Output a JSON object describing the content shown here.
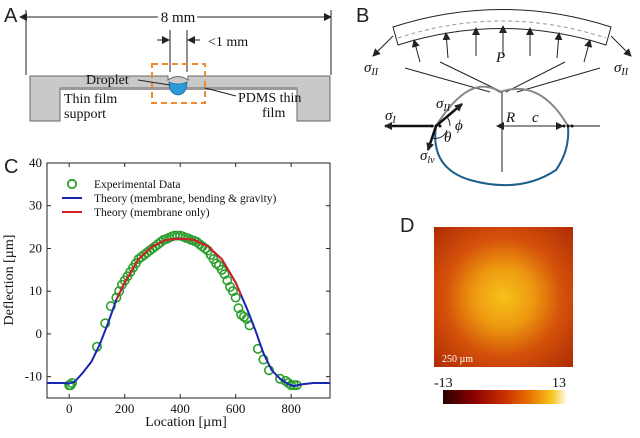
{
  "panels": {
    "a": {
      "label": "A",
      "width_label": "8 mm",
      "gap_label": "<1 mm",
      "droplet_label": "Droplet",
      "support_label_1": "Thin film",
      "support_label_2": "support",
      "film_label_1": "PDMS thin",
      "film_label_2": "film"
    },
    "b": {
      "label": "B",
      "pressure": "P",
      "sigma": "σ",
      "sub_II": "II",
      "sub_I": "I",
      "sub_lv": "lv",
      "phi": "ϕ",
      "theta": "θ",
      "radius": "R",
      "c": "c"
    },
    "c": {
      "label": "C"
    },
    "d": {
      "label": "D",
      "scale_bar": "250 µm",
      "cbar_min": "-13",
      "cbar_max": "13",
      "colors": [
        "#2a0000",
        "#8b0000",
        "#c83000",
        "#e87000",
        "#f7c21a",
        "#fff9e6"
      ]
    }
  },
  "chart_data": {
    "type": "scatter",
    "xlabel": "Location [µm]",
    "ylabel": "Deflection [µm]",
    "xlim": [
      -80,
      940
    ],
    "ylim": [
      -15,
      40
    ],
    "xticks": [
      0,
      200,
      400,
      600,
      800
    ],
    "yticks": [
      -10,
      0,
      10,
      20,
      30,
      40
    ],
    "legend_position": "top-left",
    "series": [
      {
        "name": "Experimental Data",
        "kind": "points",
        "color": "#2e9e2e",
        "x": [
          0,
          5,
          10,
          100,
          130,
          150,
          170,
          180,
          190,
          200,
          210,
          220,
          230,
          240,
          250,
          260,
          270,
          280,
          290,
          300,
          310,
          320,
          330,
          340,
          350,
          360,
          370,
          380,
          390,
          400,
          410,
          420,
          430,
          440,
          450,
          460,
          470,
          480,
          490,
          500,
          510,
          520,
          530,
          540,
          550,
          560,
          570,
          580,
          590,
          600,
          610,
          620,
          630,
          640,
          650,
          680,
          700,
          720,
          760,
          780,
          790,
          800,
          810,
          820
        ],
        "y": [
          -12,
          -12,
          -11.5,
          -3,
          2.5,
          6.5,
          8.5,
          10,
          11.5,
          12.5,
          13.5,
          14.5,
          15.5,
          16.5,
          17.5,
          18,
          18.5,
          19,
          19.5,
          20,
          20.5,
          21,
          21.5,
          22,
          22.2,
          22.5,
          22.8,
          23,
          23,
          23,
          22.8,
          22.5,
          22.3,
          22,
          21.8,
          21.5,
          21,
          20.5,
          20,
          19.5,
          18.5,
          17.5,
          16.5,
          16,
          15,
          14,
          12.5,
          11,
          10,
          8.5,
          6,
          4.5,
          4,
          3.5,
          2,
          -3.5,
          -6,
          -8.5,
          -10.5,
          -11,
          -11.5,
          -12,
          -12,
          -12
        ]
      },
      {
        "name": "Theory (membrane, bending & gravity)",
        "kind": "line",
        "color": "#1726b0",
        "x": [
          -80,
          -20,
          0,
          20,
          50,
          80,
          110,
          140,
          170,
          200,
          250,
          300,
          350,
          400,
          450,
          500,
          550,
          600,
          640,
          670,
          700,
          730,
          760,
          790,
          810,
          840,
          880,
          940
        ],
        "y": [
          -11.5,
          -11.5,
          -11.6,
          -11.2,
          -9,
          -6.5,
          -2.5,
          2.5,
          8,
          12,
          17.5,
          20.5,
          22,
          22.3,
          22,
          20.5,
          17.5,
          12,
          6,
          1,
          -4.5,
          -8.5,
          -10.5,
          -11.8,
          -12.2,
          -11.8,
          -11.5,
          -11.5
        ]
      },
      {
        "name": "Theory (membrane only)",
        "kind": "line",
        "color": "#d42020",
        "x": [
          170,
          200,
          250,
          300,
          350,
          400,
          450,
          500,
          550,
          600,
          620
        ],
        "y": [
          8,
          12,
          17.5,
          20.5,
          22,
          22.3,
          22,
          20.5,
          17.5,
          12,
          9
        ]
      }
    ]
  }
}
